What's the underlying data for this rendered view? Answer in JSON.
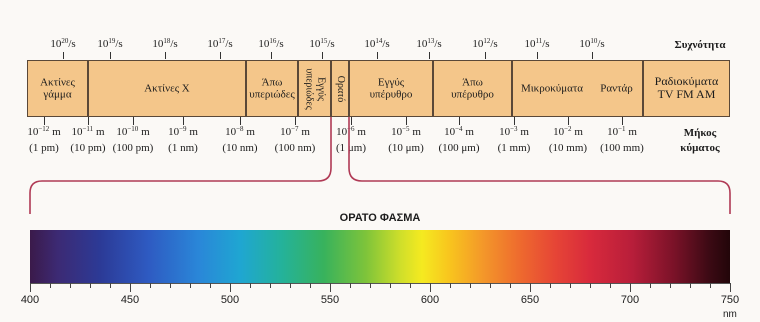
{
  "frequency": {
    "title": "Συχνότητα",
    "ticks": [
      {
        "base": "10",
        "exp": "20",
        "unit": "/s"
      },
      {
        "base": "10",
        "exp": "19",
        "unit": "/s"
      },
      {
        "base": "10",
        "exp": "18",
        "unit": "/s"
      },
      {
        "base": "10",
        "exp": "17",
        "unit": "/s"
      },
      {
        "base": "10",
        "exp": "16",
        "unit": "/s"
      },
      {
        "base": "10",
        "exp": "15",
        "unit": "/s"
      },
      {
        "base": "10",
        "exp": "14",
        "unit": "/s"
      },
      {
        "base": "10",
        "exp": "13",
        "unit": "/s"
      },
      {
        "base": "10",
        "exp": "12",
        "unit": "/s"
      },
      {
        "base": "10",
        "exp": "11",
        "unit": "/s"
      },
      {
        "base": "10",
        "exp": "10",
        "unit": "/s"
      }
    ]
  },
  "bands": [
    {
      "id": "gamma",
      "label": "Ακτίνες\nγάμμα"
    },
    {
      "id": "xray",
      "label": "Ακτίνες Χ"
    },
    {
      "id": "far-uv",
      "label": "Άπω\nυπεριώδες"
    },
    {
      "id": "near-uv",
      "label": "Εγγύς\nυπεριώδες"
    },
    {
      "id": "visible",
      "label": "Ορατό"
    },
    {
      "id": "near-ir",
      "label": "Εγγύς\nυπέρυθρο"
    },
    {
      "id": "far-ir",
      "label": "Άπω\nυπέρυθρο"
    },
    {
      "id": "microwave",
      "label": "Μικροκύματα"
    },
    {
      "id": "radar",
      "label": "Ραντάρ"
    },
    {
      "id": "radio",
      "label": "Ραδιοκύματα\nTV FM AM"
    }
  ],
  "wavelength": {
    "title": "Μήκος\nκύματος",
    "ticks": [
      {
        "base": "10",
        "exp": "−12",
        "unit": " m",
        "alt": "(1 pm)"
      },
      {
        "base": "10",
        "exp": "−11",
        "unit": " m",
        "alt": "(10 pm)"
      },
      {
        "base": "10",
        "exp": "−10",
        "unit": " m",
        "alt": "(100 pm)"
      },
      {
        "base": "10",
        "exp": "−9",
        "unit": " m",
        "alt": "(1 nm)"
      },
      {
        "base": "10",
        "exp": "−8",
        "unit": " m",
        "alt": "(10 nm)"
      },
      {
        "base": "10",
        "exp": "−7",
        "unit": " m",
        "alt": "(100 nm)"
      },
      {
        "base": "10",
        "exp": "−6",
        "unit": " m",
        "alt": "(1 μm)"
      },
      {
        "base": "10",
        "exp": "−5",
        "unit": " m",
        "alt": "(10 μm)"
      },
      {
        "base": "10",
        "exp": "−4",
        "unit": " m",
        "alt": "(100 μm)"
      },
      {
        "base": "10",
        "exp": "−3",
        "unit": " m",
        "alt": "(1 mm)"
      },
      {
        "base": "10",
        "exp": "−2",
        "unit": " m",
        "alt": "(10 mm)"
      },
      {
        "base": "10",
        "exp": "−1",
        "unit": " m",
        "alt": "(100 mm)"
      }
    ]
  },
  "visible_spectrum": {
    "title": "ΟΡΑΤΟ ΦΑΣΜΑ",
    "unit": "nm",
    "range": [
      400,
      750
    ],
    "labels": [
      "400",
      "450",
      "500",
      "550",
      "600",
      "650",
      "700",
      "750"
    ],
    "colors": {
      "violet": "#3b1a4a",
      "blue": "#2e5bc2",
      "green": "#38b25c",
      "yellow": "#f5ea20",
      "orange": "#f3952a",
      "red": "#d82a3c"
    }
  },
  "accent": {
    "band_fill": "#f4c68a",
    "connector": "#b03a55"
  }
}
